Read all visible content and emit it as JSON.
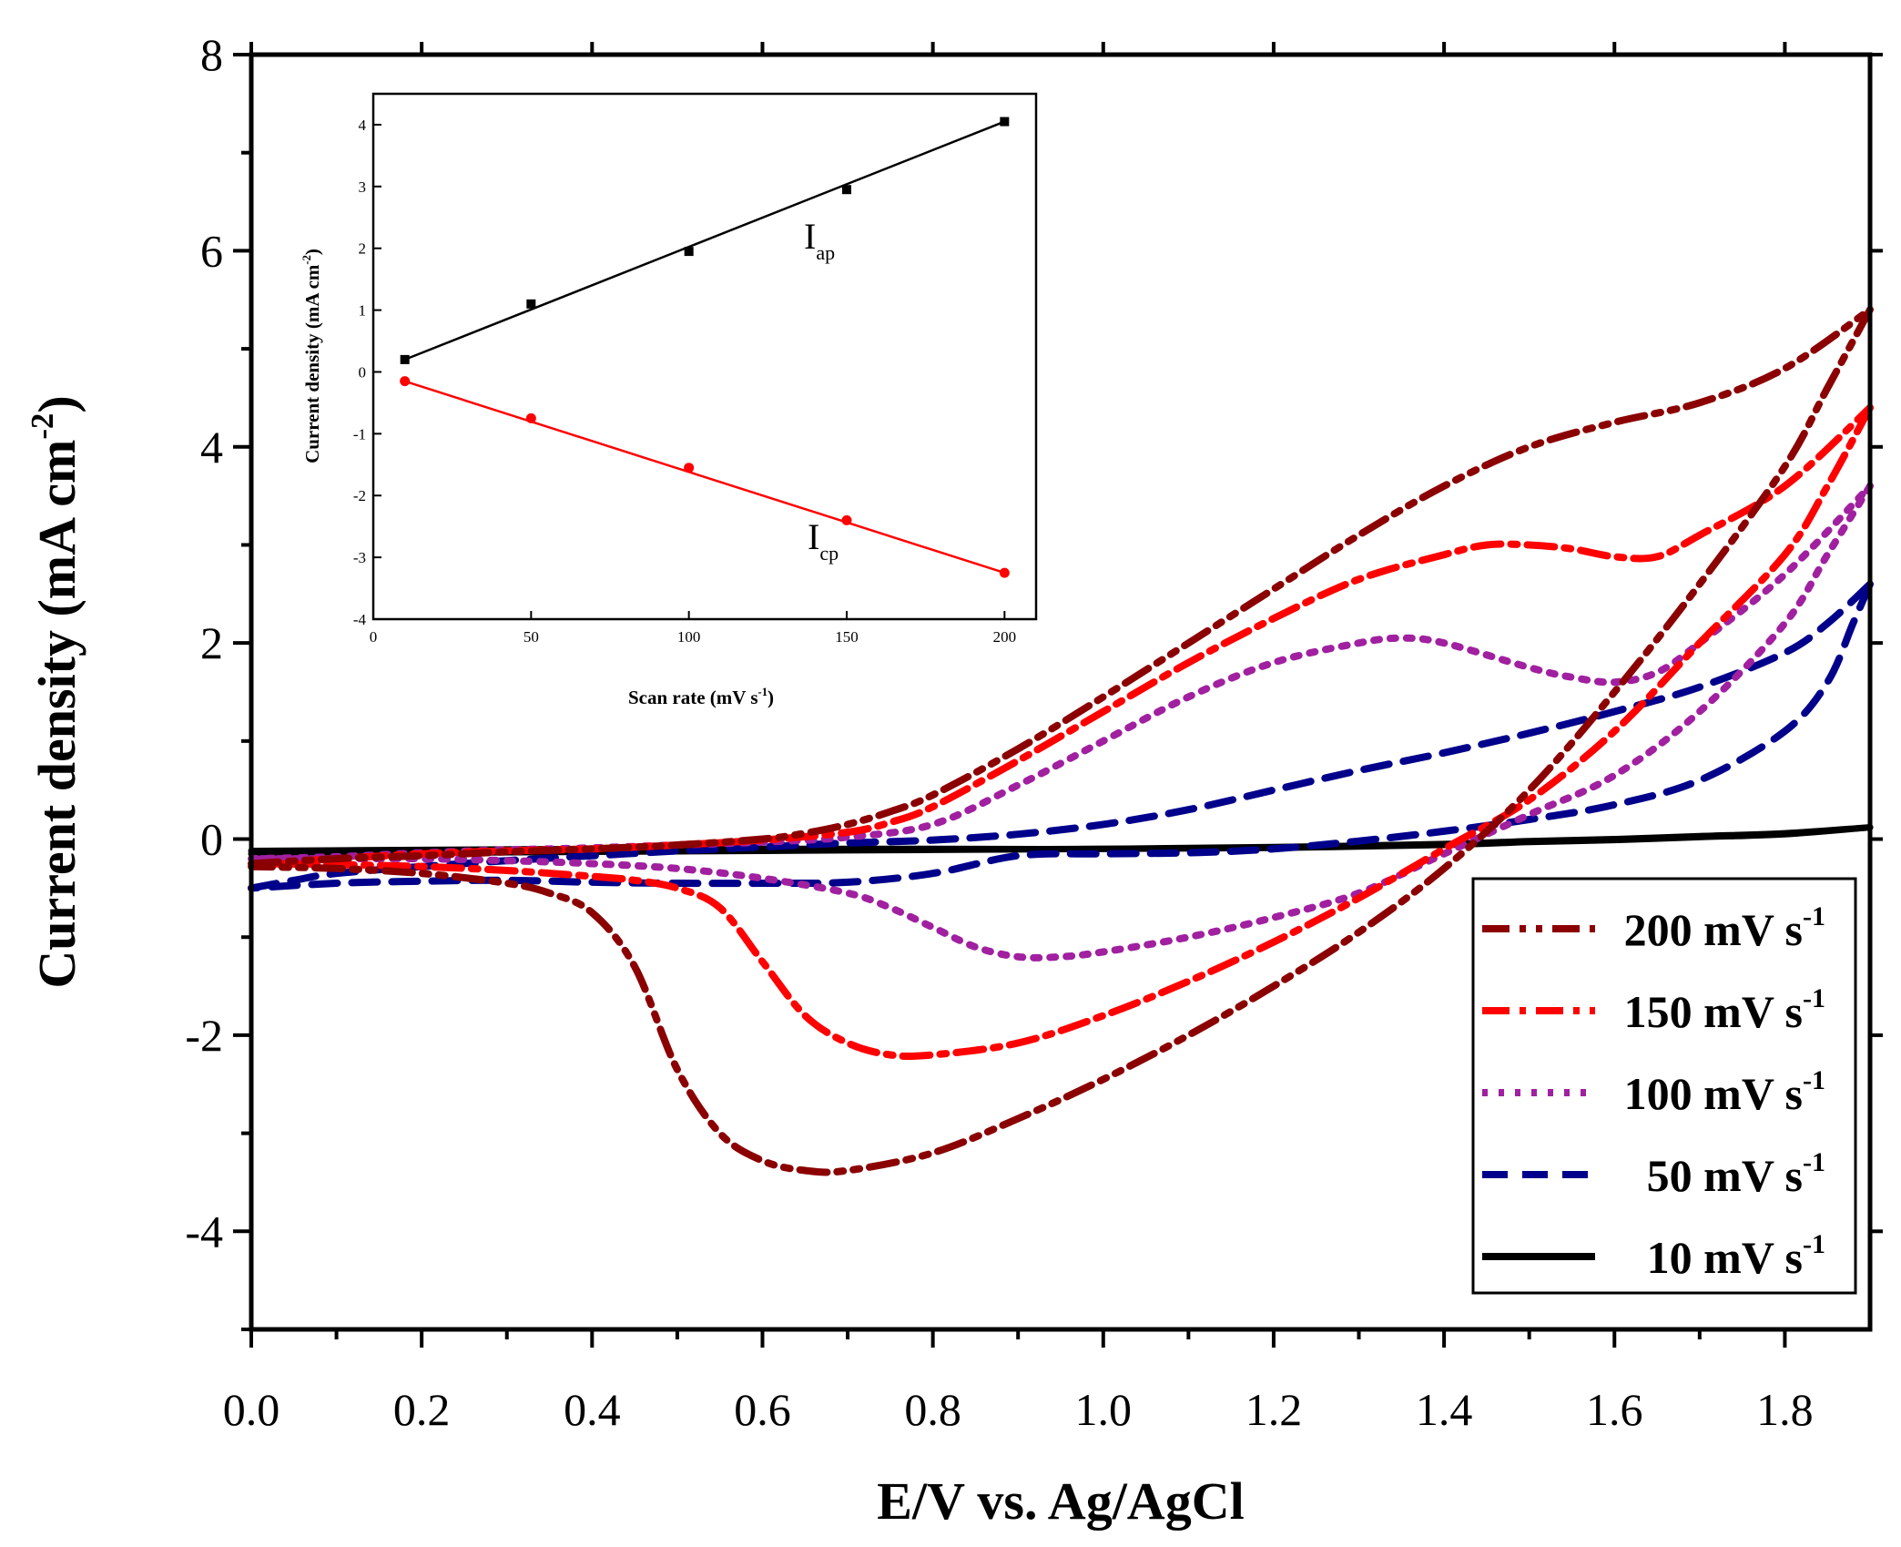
{
  "chart_data": [
    {
      "type": "line",
      "title": "",
      "xlabel": "E/V vs. Ag/AgCl",
      "ylabel_main": "Current density (mA cm",
      "ylabel_sup": "-2",
      "ylabel_close": ")",
      "xlim": [
        0.0,
        1.9
      ],
      "ylim": [
        -5,
        8
      ],
      "xticks": [
        0.0,
        0.2,
        0.4,
        0.6,
        0.8,
        1.0,
        1.2,
        1.4,
        1.6,
        1.8
      ],
      "xtick_labels": [
        "0.0",
        "0.2",
        "0.4",
        "0.6",
        "0.8",
        "1.0",
        "1.2",
        "1.4",
        "1.6",
        "1.8"
      ],
      "yticks": [
        -4,
        -2,
        0,
        2,
        4,
        6,
        8
      ],
      "ytick_labels": [
        "-4",
        "-2",
        "0",
        "2",
        "4",
        "6",
        "8"
      ],
      "legend_position": "bottom-right",
      "series": [
        {
          "name": "200 mV s-1",
          "label_main": "200 mV s",
          "label_sup": "-1",
          "color": "#8b0000",
          "dash": "dash-dot-dot",
          "anodic": [
            [
              0.0,
              -0.25
            ],
            [
              0.1,
              -0.2
            ],
            [
              0.2,
              -0.17
            ],
            [
              0.3,
              -0.13
            ],
            [
              0.4,
              -0.1
            ],
            [
              0.5,
              -0.06
            ],
            [
              0.6,
              0.0
            ],
            [
              0.65,
              0.06
            ],
            [
              0.7,
              0.15
            ],
            [
              0.75,
              0.28
            ],
            [
              0.8,
              0.45
            ],
            [
              0.9,
              0.92
            ],
            [
              1.0,
              1.45
            ],
            [
              1.1,
              2.0
            ],
            [
              1.2,
              2.55
            ],
            [
              1.3,
              3.1
            ],
            [
              1.4,
              3.6
            ],
            [
              1.5,
              4.0
            ],
            [
              1.6,
              4.25
            ],
            [
              1.7,
              4.45
            ],
            [
              1.8,
              4.8
            ],
            [
              1.9,
              5.4
            ]
          ],
          "cathodic": [
            [
              1.9,
              5.4
            ],
            [
              1.85,
              4.6
            ],
            [
              1.8,
              3.8
            ],
            [
              1.7,
              2.6
            ],
            [
              1.6,
              1.5
            ],
            [
              1.5,
              0.5
            ],
            [
              1.4,
              -0.3
            ],
            [
              1.3,
              -0.95
            ],
            [
              1.2,
              -1.5
            ],
            [
              1.1,
              -2.0
            ],
            [
              1.0,
              -2.45
            ],
            [
              0.9,
              -2.85
            ],
            [
              0.8,
              -3.2
            ],
            [
              0.7,
              -3.38
            ],
            [
              0.65,
              -3.38
            ],
            [
              0.6,
              -3.28
            ],
            [
              0.55,
              -3.0
            ],
            [
              0.5,
              -2.35
            ],
            [
              0.45,
              -1.3
            ],
            [
              0.4,
              -0.75
            ],
            [
              0.35,
              -0.55
            ],
            [
              0.3,
              -0.45
            ],
            [
              0.2,
              -0.35
            ],
            [
              0.1,
              -0.3
            ],
            [
              0.0,
              -0.28
            ]
          ]
        },
        {
          "name": "150 mV s-1",
          "label_main": "150 mV s",
          "label_sup": "-1",
          "color": "#ff0000",
          "dash": "dash-dot",
          "anodic": [
            [
              0.0,
              -0.25
            ],
            [
              0.1,
              -0.2
            ],
            [
              0.2,
              -0.15
            ],
            [
              0.3,
              -0.12
            ],
            [
              0.4,
              -0.1
            ],
            [
              0.5,
              -0.06
            ],
            [
              0.6,
              -0.01
            ],
            [
              0.7,
              0.07
            ],
            [
              0.75,
              0.17
            ],
            [
              0.8,
              0.33
            ],
            [
              0.9,
              0.8
            ],
            [
              1.0,
              1.3
            ],
            [
              1.1,
              1.8
            ],
            [
              1.2,
              2.25
            ],
            [
              1.3,
              2.65
            ],
            [
              1.4,
              2.9
            ],
            [
              1.45,
              3.0
            ],
            [
              1.5,
              3.0
            ],
            [
              1.55,
              2.96
            ],
            [
              1.6,
              2.88
            ],
            [
              1.65,
              2.88
            ],
            [
              1.7,
              3.1
            ],
            [
              1.8,
              3.6
            ],
            [
              1.9,
              4.4
            ]
          ],
          "cathodic": [
            [
              1.9,
              4.4
            ],
            [
              1.85,
              3.6
            ],
            [
              1.8,
              2.9
            ],
            [
              1.7,
              2.0
            ],
            [
              1.6,
              1.1
            ],
            [
              1.5,
              0.4
            ],
            [
              1.4,
              -0.1
            ],
            [
              1.3,
              -0.6
            ],
            [
              1.2,
              -1.05
            ],
            [
              1.1,
              -1.45
            ],
            [
              1.0,
              -1.8
            ],
            [
              0.9,
              -2.08
            ],
            [
              0.8,
              -2.2
            ],
            [
              0.75,
              -2.2
            ],
            [
              0.7,
              -2.08
            ],
            [
              0.65,
              -1.8
            ],
            [
              0.6,
              -1.25
            ],
            [
              0.55,
              -0.7
            ],
            [
              0.5,
              -0.5
            ],
            [
              0.45,
              -0.42
            ],
            [
              0.4,
              -0.38
            ],
            [
              0.3,
              -0.32
            ],
            [
              0.2,
              -0.28
            ],
            [
              0.1,
              -0.26
            ],
            [
              0.0,
              -0.25
            ]
          ]
        },
        {
          "name": "100 mV s-1",
          "label_main": "100 mV s",
          "label_sup": "-1",
          "color": "#a020a0",
          "dash": "dotted",
          "anodic": [
            [
              0.0,
              -0.2
            ],
            [
              0.1,
              -0.18
            ],
            [
              0.2,
              -0.14
            ],
            [
              0.3,
              -0.11
            ],
            [
              0.4,
              -0.09
            ],
            [
              0.5,
              -0.06
            ],
            [
              0.6,
              -0.03
            ],
            [
              0.7,
              0.02
            ],
            [
              0.8,
              0.15
            ],
            [
              0.9,
              0.55
            ],
            [
              1.0,
              1.0
            ],
            [
              1.1,
              1.45
            ],
            [
              1.2,
              1.8
            ],
            [
              1.3,
              2.0
            ],
            [
              1.35,
              2.05
            ],
            [
              1.4,
              2.0
            ],
            [
              1.5,
              1.75
            ],
            [
              1.55,
              1.65
            ],
            [
              1.6,
              1.6
            ],
            [
              1.65,
              1.7
            ],
            [
              1.7,
              2.0
            ],
            [
              1.8,
              2.7
            ],
            [
              1.9,
              3.6
            ]
          ],
          "cathodic": [
            [
              1.9,
              3.6
            ],
            [
              1.85,
              2.9
            ],
            [
              1.8,
              2.2
            ],
            [
              1.7,
              1.3
            ],
            [
              1.6,
              0.65
            ],
            [
              1.5,
              0.25
            ],
            [
              1.4,
              -0.15
            ],
            [
              1.3,
              -0.55
            ],
            [
              1.2,
              -0.8
            ],
            [
              1.1,
              -1.0
            ],
            [
              1.0,
              -1.15
            ],
            [
              0.95,
              -1.2
            ],
            [
              0.9,
              -1.2
            ],
            [
              0.85,
              -1.1
            ],
            [
              0.8,
              -0.9
            ],
            [
              0.75,
              -0.7
            ],
            [
              0.7,
              -0.55
            ],
            [
              0.6,
              -0.4
            ],
            [
              0.5,
              -0.3
            ],
            [
              0.4,
              -0.25
            ],
            [
              0.3,
              -0.22
            ],
            [
              0.2,
              -0.2
            ],
            [
              0.1,
              -0.2
            ],
            [
              0.0,
              -0.2
            ]
          ]
        },
        {
          "name": "50 mV s-1",
          "label_main": "50 mV s",
          "label_sup": "-1",
          "color": "#00008b",
          "dash": "dashed",
          "anodic": [
            [
              0.0,
              -0.5
            ],
            [
              0.05,
              -0.42
            ],
            [
              0.1,
              -0.35
            ],
            [
              0.2,
              -0.28
            ],
            [
              0.3,
              -0.22
            ],
            [
              0.4,
              -0.17
            ],
            [
              0.5,
              -0.12
            ],
            [
              0.6,
              -0.08
            ],
            [
              0.7,
              -0.04
            ],
            [
              0.8,
              -0.01
            ],
            [
              0.9,
              0.05
            ],
            [
              1.0,
              0.15
            ],
            [
              1.1,
              0.3
            ],
            [
              1.2,
              0.5
            ],
            [
              1.3,
              0.7
            ],
            [
              1.4,
              0.88
            ],
            [
              1.5,
              1.08
            ],
            [
              1.6,
              1.3
            ],
            [
              1.7,
              1.55
            ],
            [
              1.8,
              1.9
            ],
            [
              1.85,
              2.2
            ],
            [
              1.9,
              2.6
            ]
          ],
          "cathodic": [
            [
              1.9,
              2.6
            ],
            [
              1.88,
              2.2
            ],
            [
              1.85,
              1.6
            ],
            [
              1.8,
              1.1
            ],
            [
              1.7,
              0.6
            ],
            [
              1.6,
              0.35
            ],
            [
              1.5,
              0.2
            ],
            [
              1.4,
              0.08
            ],
            [
              1.3,
              -0.02
            ],
            [
              1.2,
              -0.1
            ],
            [
              1.1,
              -0.14
            ],
            [
              1.0,
              -0.15
            ],
            [
              0.9,
              -0.17
            ],
            [
              0.8,
              -0.35
            ],
            [
              0.7,
              -0.44
            ],
            [
              0.6,
              -0.45
            ],
            [
              0.5,
              -0.45
            ],
            [
              0.4,
              -0.44
            ],
            [
              0.3,
              -0.42
            ],
            [
              0.2,
              -0.43
            ],
            [
              0.1,
              -0.45
            ],
            [
              0.0,
              -0.5
            ]
          ]
        },
        {
          "name": "10 mV s-1",
          "label_main": "10 mV s",
          "label_sup": "-1",
          "color": "#000000",
          "dash": "solid",
          "anodic": [
            [
              0.0,
              -0.12
            ],
            [
              0.2,
              -0.11
            ],
            [
              0.4,
              -0.1
            ],
            [
              0.6,
              -0.1
            ],
            [
              0.8,
              -0.1
            ],
            [
              1.0,
              -0.1
            ],
            [
              1.2,
              -0.08
            ],
            [
              1.4,
              -0.05
            ],
            [
              1.5,
              -0.02
            ],
            [
              1.6,
              0.0
            ],
            [
              1.7,
              0.03
            ],
            [
              1.8,
              0.06
            ],
            [
              1.9,
              0.12
            ]
          ],
          "cathodic": [
            [
              1.9,
              0.12
            ],
            [
              1.8,
              0.05
            ],
            [
              1.7,
              0.02
            ],
            [
              1.6,
              -0.01
            ],
            [
              1.5,
              -0.03
            ],
            [
              1.4,
              -0.06
            ],
            [
              1.2,
              -0.09
            ],
            [
              1.0,
              -0.1
            ],
            [
              0.8,
              -0.11
            ],
            [
              0.6,
              -0.12
            ],
            [
              0.4,
              -0.13
            ],
            [
              0.2,
              -0.14
            ],
            [
              0.0,
              -0.15
            ]
          ]
        }
      ]
    },
    {
      "type": "line",
      "title": "",
      "inset": true,
      "xlabel_main": "Scan rate (mV s",
      "xlabel_sup": "-1",
      "xlabel_close": ")",
      "ylabel_main": "Current density (mA cm",
      "ylabel_sup": "-2",
      "ylabel_close": ")",
      "xlim": [
        0,
        210
      ],
      "ylim": [
        -4,
        4.5
      ],
      "xticks": [
        0,
        50,
        100,
        150,
        200
      ],
      "xtick_labels": [
        "0",
        "50",
        "100",
        "150",
        "200"
      ],
      "yticks": [
        -4,
        -3,
        -2,
        -1,
        0,
        1,
        2,
        3,
        4
      ],
      "ytick_labels": [
        "-4",
        "-3",
        "-2",
        "-1",
        "0",
        "1",
        "2",
        "3",
        "4"
      ],
      "x": [
        10,
        50,
        100,
        150,
        200
      ],
      "series": [
        {
          "name": "Iap",
          "label_main": "I",
          "label_sub": "ap",
          "color": "#000000",
          "marker": "square",
          "values": [
            0.2,
            1.1,
            1.95,
            2.95,
            4.05
          ],
          "fit": [
            0.2,
            4.05
          ]
        },
        {
          "name": "Icp",
          "label_main": "I",
          "label_sub": "cp",
          "color": "#ff0000",
          "marker": "circle",
          "values": [
            -0.15,
            -0.75,
            -1.55,
            -2.4,
            -3.25
          ],
          "fit": [
            -0.15,
            -3.25
          ]
        }
      ]
    }
  ]
}
